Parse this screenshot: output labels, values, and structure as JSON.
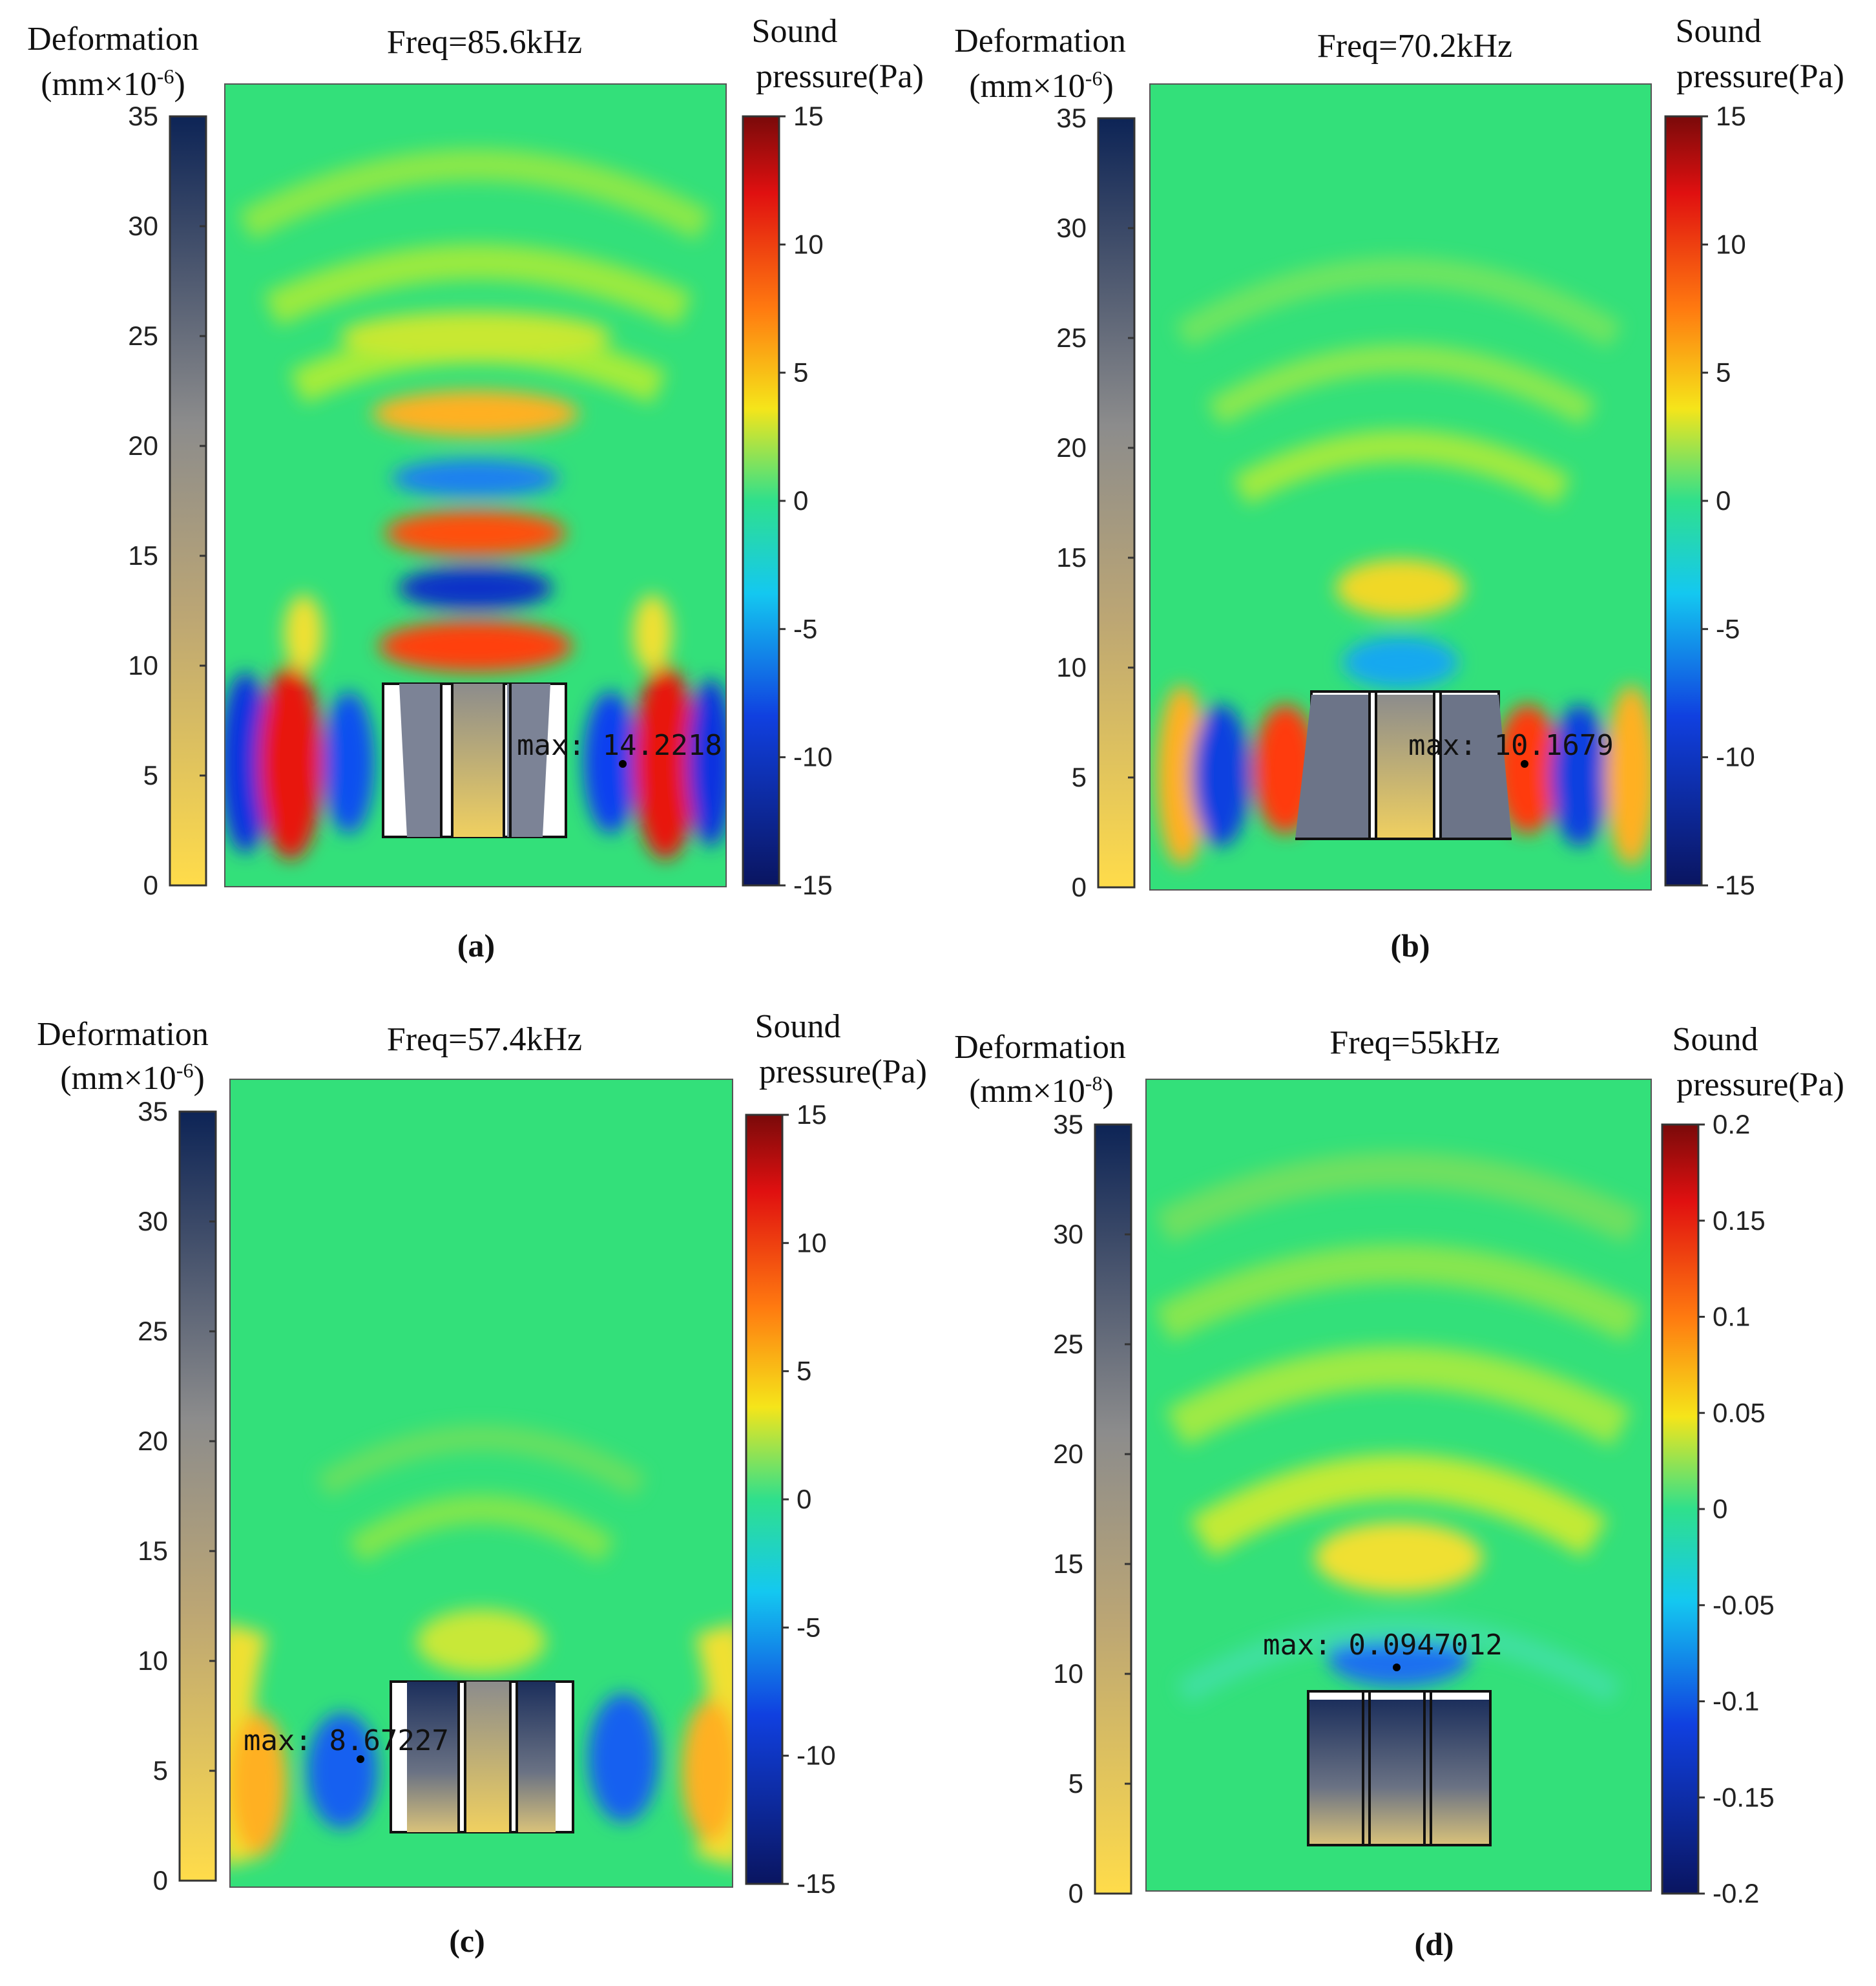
{
  "chart_data": [
    {
      "type": "heatmap",
      "panel": "(a)",
      "title": "Freq=85.6kHz",
      "deformation_label_line1": "Deformation",
      "deformation_label_line2": "(mm×10",
      "deformation_exponent": "-6",
      "deformation_ticks": [
        "0",
        "5",
        "10",
        "15",
        "20",
        "25",
        "30",
        "35"
      ],
      "deformation_range": [
        0,
        35
      ],
      "pressure_label_line1": "Sound",
      "pressure_label_line2": "pressure(Pa)",
      "pressure_ticks": [
        "15",
        "10",
        "5",
        "0",
        "-5",
        "-10",
        "-15"
      ],
      "pressure_range": [
        -15,
        15
      ],
      "max_label": "max: 14.2218",
      "max_value": 14.2218,
      "field_pattern": "focused-lobes"
    },
    {
      "type": "heatmap",
      "panel": "(b)",
      "title": "Freq=70.2kHz",
      "deformation_label_line1": "Deformation",
      "deformation_label_line2": "(mm×10",
      "deformation_exponent": "-6",
      "deformation_ticks": [
        "0",
        "5",
        "10",
        "15",
        "20",
        "25",
        "30",
        "35"
      ],
      "deformation_range": [
        0,
        35
      ],
      "pressure_label_line1": "Sound",
      "pressure_label_line2": "pressure(Pa)",
      "pressure_ticks": [
        "15",
        "10",
        "5",
        "0",
        "-5",
        "-10",
        "-15"
      ],
      "pressure_range": [
        -15,
        15
      ],
      "max_label": "max: 10.1679",
      "max_value": 10.1679,
      "field_pattern": "arcs"
    },
    {
      "type": "heatmap",
      "panel": "(c)",
      "title": "Freq=57.4kHz",
      "deformation_label_line1": "Deformation",
      "deformation_label_line2": "(mm×10",
      "deformation_exponent": "-6",
      "deformation_ticks": [
        "0",
        "5",
        "10",
        "15",
        "20",
        "25",
        "30",
        "35"
      ],
      "deformation_range": [
        0,
        35
      ],
      "pressure_label_line1": "Sound",
      "pressure_label_line2": "pressure(Pa)",
      "pressure_ticks": [
        "15",
        "10",
        "5",
        "0",
        "-5",
        "-10",
        "-15"
      ],
      "pressure_range": [
        -15,
        15
      ],
      "max_label": "max: 8.67227",
      "max_value": 8.67227,
      "field_pattern": "weak"
    },
    {
      "type": "heatmap",
      "panel": "(d)",
      "title": "Freq=55kHz",
      "deformation_label_line1": "Deformation",
      "deformation_label_line2": "(mm×10",
      "deformation_exponent": "-8",
      "deformation_ticks": [
        "0",
        "5",
        "10",
        "15",
        "20",
        "25",
        "30",
        "35"
      ],
      "deformation_range": [
        0,
        35
      ],
      "pressure_label_line1": "Sound",
      "pressure_label_line2": "pressure(Pa)",
      "pressure_ticks": [
        "0.2",
        "0.15",
        "0.1",
        "0.05",
        "0",
        "-0.05",
        "-0.1",
        "-0.15",
        "-0.2"
      ],
      "pressure_range": [
        -0.2,
        0.2
      ],
      "max_label": "max: 0.0947012",
      "max_value": 0.0947012,
      "field_pattern": "smooth-arcs"
    }
  ],
  "colors": {
    "field_bg": "#33e07a",
    "deformation_top": "#0d2456",
    "deformation_mid": "#8c8c8c",
    "deformation_bottom": "#ffdc4a",
    "pressure_max": "#7a0a0a",
    "pressure_zero": "#2fe08c",
    "pressure_min": "#0a1560"
  }
}
